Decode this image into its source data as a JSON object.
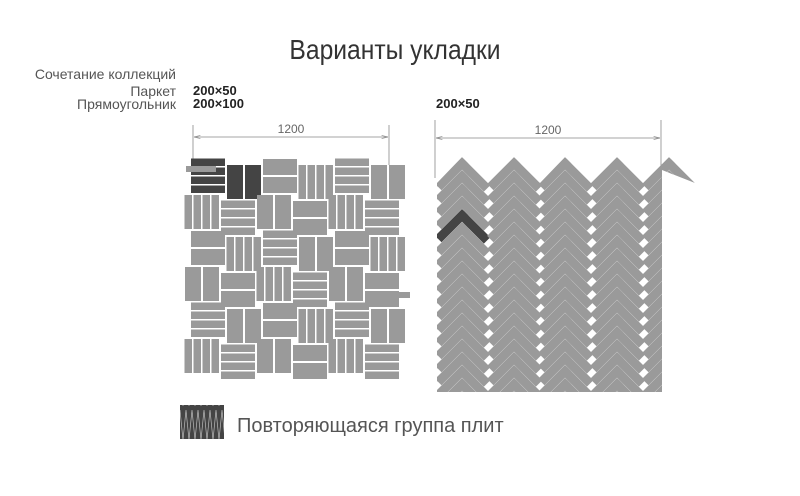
{
  "title": "Варианты укладки",
  "left_layout": {
    "collection_label": "Сочетание коллекций",
    "rows": [
      {
        "name": "Паркет",
        "size": "200×50"
      },
      {
        "name": "Прямоугольник",
        "size": "200×100"
      }
    ],
    "dimension": "1200"
  },
  "right_layout": {
    "size": "200×50",
    "dimension": "1200"
  },
  "legend": {
    "label": "Повторяющаяся группа плит"
  },
  "colors": {
    "tile": "#9a9a9a",
    "highlight": "#444444",
    "dimension_line": "#888888"
  }
}
